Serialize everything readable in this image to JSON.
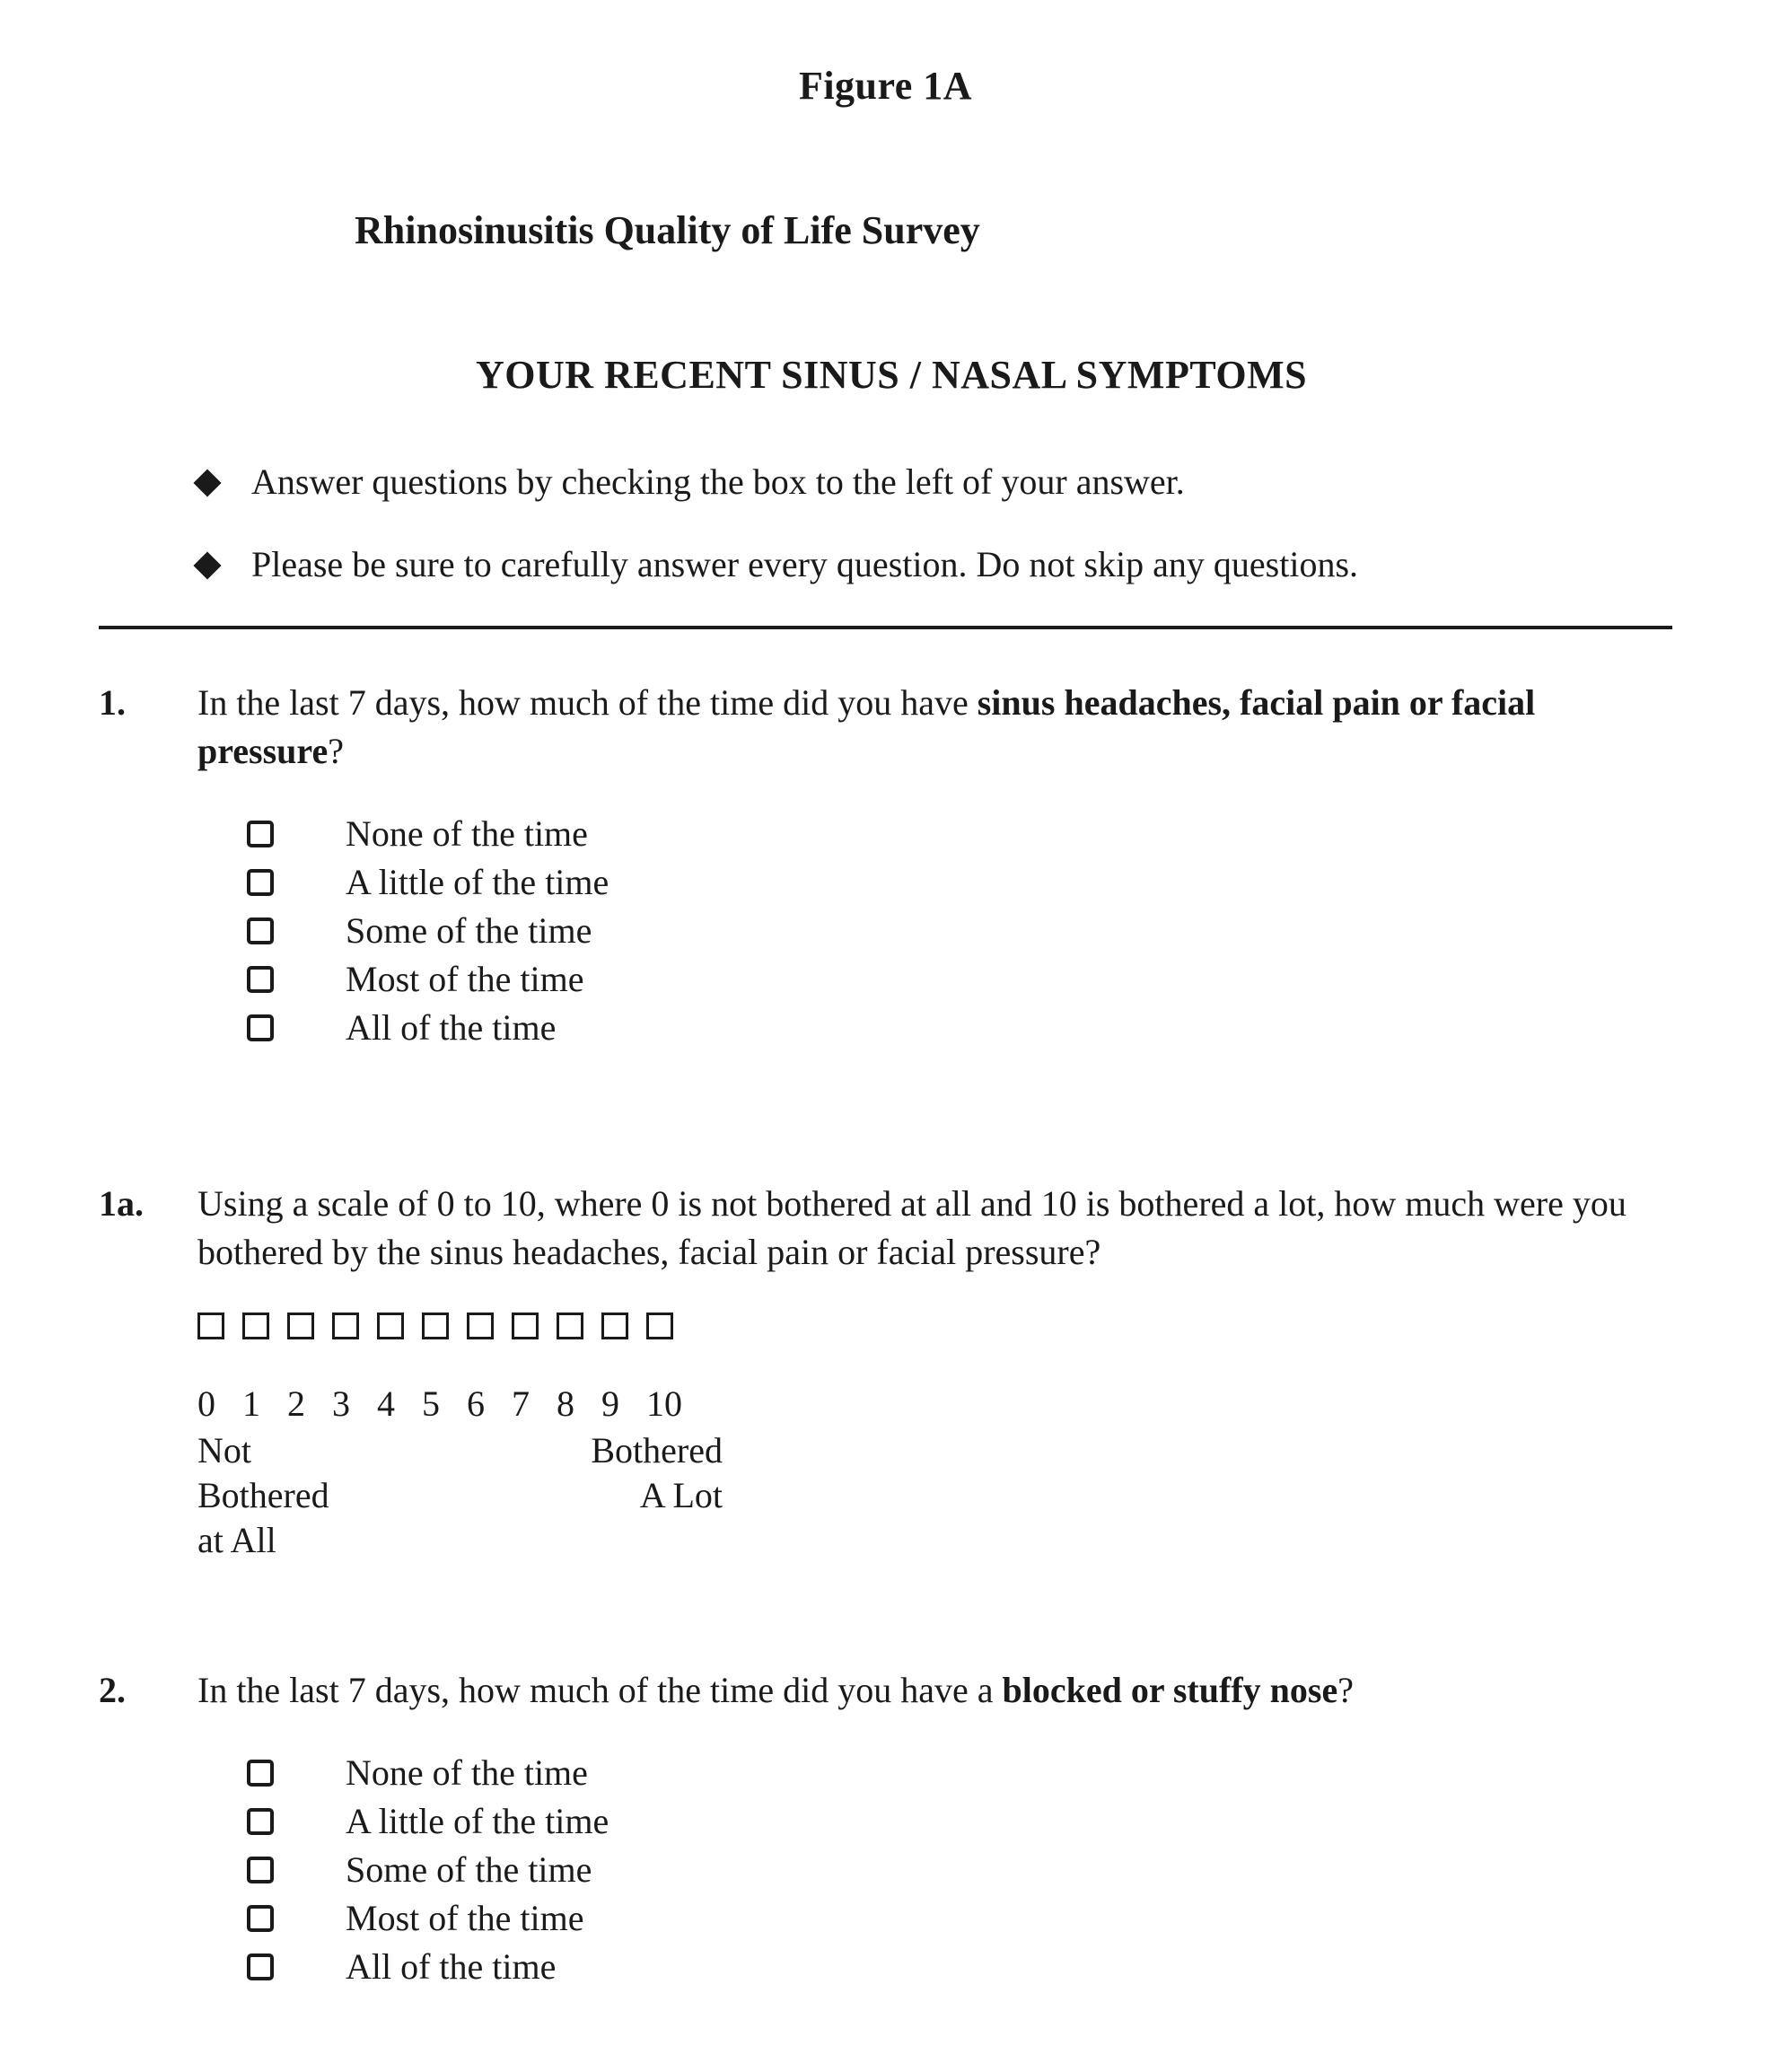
{
  "colors": {
    "text": "#1a1a1a",
    "background": "#ffffff",
    "rule": "#1a1a1a",
    "checkbox_border": "#1a1a1a"
  },
  "typography": {
    "family": "Times New Roman",
    "base_size_pt": 30,
    "heading_weight": 700
  },
  "figure_label": "Figure 1A",
  "survey_title": "Rhinosinusitis Quality of Life Survey",
  "section_heading": "YOUR RECENT SINUS / NASAL SYMPTOMS",
  "instructions": [
    "Answer questions by checking the box to the left of your answer.",
    "Please be sure to carefully answer every question. Do not skip any questions."
  ],
  "time_options": [
    "None of the time",
    "A little of the time",
    "Some of the time",
    "Most of the time",
    "All of the time"
  ],
  "q1": {
    "number": "1.",
    "prefix": "In the last 7 days, how much of the time did you have ",
    "bold": "sinus headaches, facial pain or facial pressure",
    "suffix": "?"
  },
  "q1a": {
    "number": "1a.",
    "text": "Using a scale of 0 to 10, where 0 is not bothered at all and 10 is bothered a lot, how much were you bothered by the sinus headaches, facial pain or facial pressure?",
    "scale": {
      "values": [
        "0",
        "1",
        "2",
        "3",
        "4",
        "5",
        "6",
        "7",
        "8",
        "9",
        "10"
      ],
      "anchor_left_l1": "Not",
      "anchor_left_l2": "Bothered",
      "anchor_left_l3": "at All",
      "anchor_right_l1": "Bothered",
      "anchor_right_l2": "A Lot"
    }
  },
  "q2": {
    "number": "2.",
    "prefix": "In the last 7 days, how much of the time did you have a ",
    "bold": "blocked or stuffy nose",
    "suffix": "?"
  }
}
